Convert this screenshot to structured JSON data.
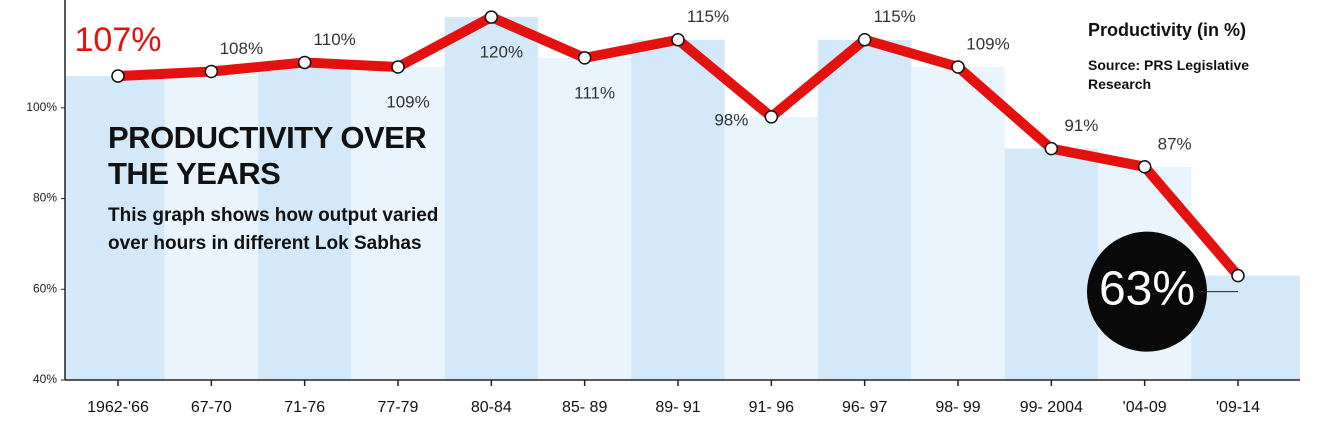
{
  "chart_data": {
    "type": "line",
    "title": "PRODUCTIVITY OVER THE YEARS",
    "subtitle": "This graph shows how output varied over hours in different Lok Sabhas",
    "legend_title": "Productivity (in %)",
    "source": "Source: PRS Legislative Research",
    "categories": [
      "1962-'66",
      "67-70",
      "71-76",
      "77-79",
      "80-84",
      "85- 89",
      "89- 91",
      "91- 96",
      "96- 97",
      "98- 99",
      "99- 2004",
      "'04-09",
      "'09-14"
    ],
    "series": [
      {
        "name": "Productivity",
        "color": "#e5110f",
        "values": [
          107,
          108,
          110,
          109,
          120,
          111,
          115,
          98,
          115,
          109,
          91,
          87,
          63
        ],
        "value_labels": [
          "107%",
          "108%",
          "110%",
          "109%",
          "120%",
          "111%",
          "115%",
          "98%",
          "115%",
          "109%",
          "91%",
          "87%",
          "63%"
        ]
      }
    ],
    "band_colors": [
      "#d3e8f8",
      "#e9f4fc"
    ],
    "ylim": [
      40,
      122
    ],
    "yticks": [
      {
        "value": 40,
        "label": "40%"
      },
      {
        "value": 60,
        "label": "60%"
      },
      {
        "value": 80,
        "label": "80%"
      },
      {
        "value": 100,
        "label": "100%"
      }
    ]
  }
}
